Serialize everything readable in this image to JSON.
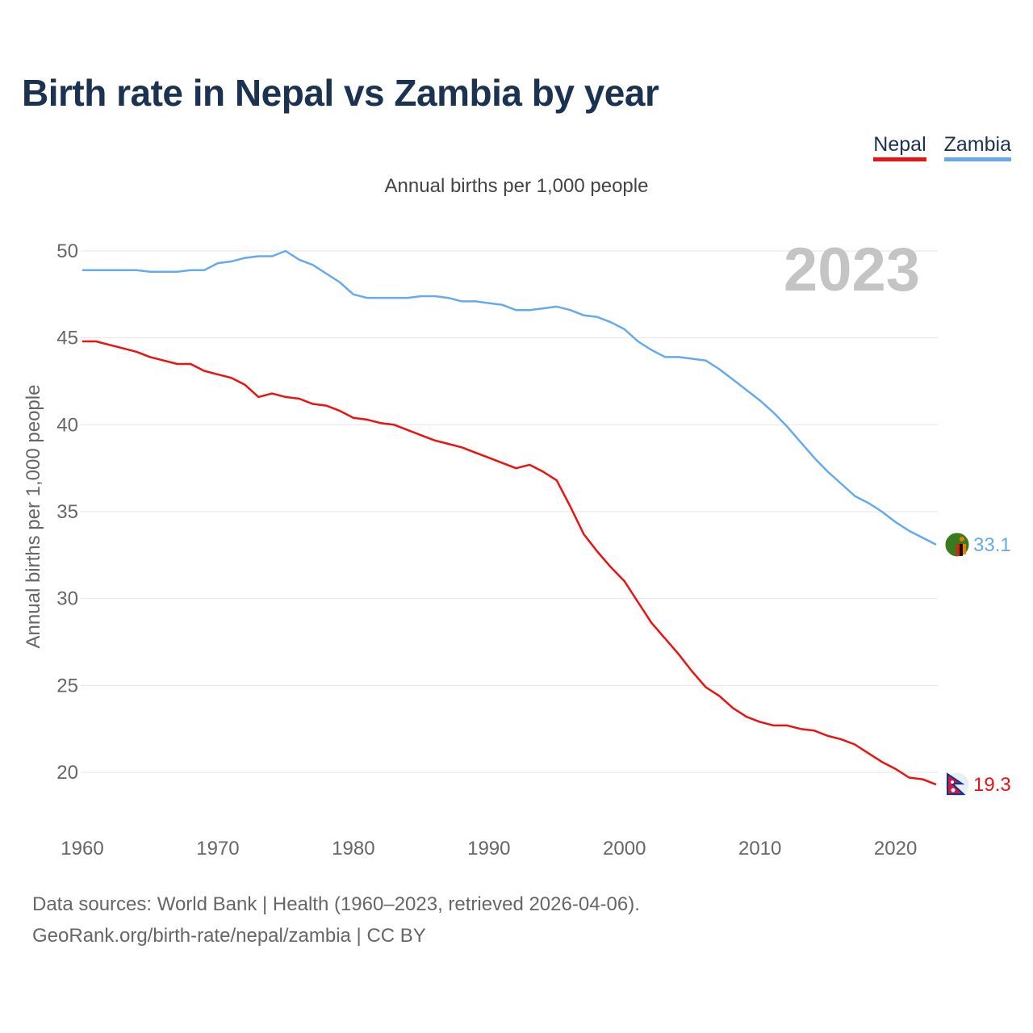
{
  "title": "Birth rate in Nepal vs Zambia by year",
  "subtitle": "Annual births per 1,000 people",
  "legend": [
    {
      "name": "Nepal",
      "color": "#ee1111"
    },
    {
      "name": "Zambia",
      "color": "#66aaee"
    }
  ],
  "year_label": "2023",
  "footer": {
    "sources": "Data sources: World Bank | Health (1960–2023, retrieved 2026-04-06).",
    "credit": "GeoRank.org/birth-rate/nepal/zambia | CC BY"
  },
  "chart_data": {
    "type": "line",
    "title": "Birth rate in Nepal vs Zambia by year",
    "xlabel": "",
    "ylabel": "Annual births per 1,000 people",
    "xlim": [
      1960,
      2023
    ],
    "ylim": [
      17,
      51
    ],
    "x_ticks": [
      1960,
      1970,
      1980,
      1990,
      2000,
      2010,
      2020
    ],
    "y_ticks": [
      20,
      25,
      30,
      35,
      40,
      45,
      50
    ],
    "grid": true,
    "legend_position": "top-right",
    "series": [
      {
        "name": "Nepal",
        "color": "#ee1111",
        "end_label": "19.3",
        "start": 1960,
        "values": [
          44.8,
          44.8,
          44.6,
          44.4,
          44.2,
          43.9,
          43.7,
          43.5,
          43.5,
          43.1,
          42.9,
          42.7,
          42.3,
          41.6,
          41.8,
          41.6,
          41.5,
          41.2,
          41.1,
          40.8,
          40.4,
          40.3,
          40.1,
          40.0,
          39.7,
          39.4,
          39.1,
          38.9,
          38.7,
          38.4,
          38.1,
          37.8,
          37.5,
          37.7,
          37.3,
          36.8,
          35.3,
          33.7,
          32.7,
          31.8,
          31.0,
          29.8,
          28.6,
          27.7,
          26.8,
          25.8,
          24.9,
          24.4,
          23.7,
          23.2,
          22.9,
          22.7,
          22.7,
          22.5,
          22.4,
          22.1,
          21.9,
          21.6,
          21.1,
          20.6,
          20.2,
          19.7,
          19.6,
          19.3
        ]
      },
      {
        "name": "Zambia",
        "color": "#66aaee",
        "end_label": "33.1",
        "start": 1960,
        "values": [
          48.9,
          48.9,
          48.9,
          48.9,
          48.9,
          48.8,
          48.8,
          48.8,
          48.9,
          48.9,
          49.3,
          49.4,
          49.6,
          49.7,
          49.7,
          50.0,
          49.5,
          49.2,
          48.7,
          48.2,
          47.5,
          47.3,
          47.3,
          47.3,
          47.3,
          47.4,
          47.4,
          47.3,
          47.1,
          47.1,
          47.0,
          46.9,
          46.6,
          46.6,
          46.7,
          46.8,
          46.6,
          46.3,
          46.2,
          45.9,
          45.5,
          44.8,
          44.3,
          43.9,
          43.9,
          43.8,
          43.7,
          43.2,
          42.6,
          42.0,
          41.4,
          40.7,
          39.9,
          39.0,
          38.1,
          37.3,
          36.6,
          35.9,
          35.5,
          35.0,
          34.4,
          33.9,
          33.5,
          33.1
        ]
      }
    ]
  }
}
